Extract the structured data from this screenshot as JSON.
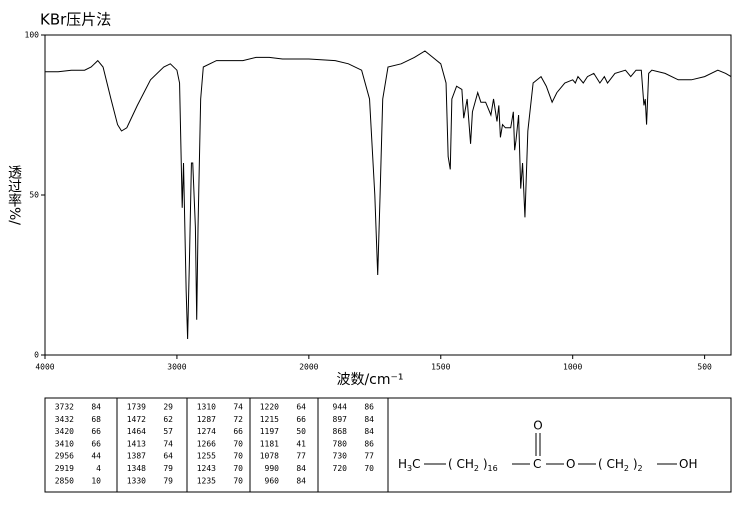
{
  "chart_data": {
    "type": "line",
    "title": "KBr压片法",
    "xlabel": "波数/cm⁻¹",
    "ylabel": "透过率%/",
    "color": "#000000",
    "xlim": [
      4000,
      400
    ],
    "x_scale_break": 2000,
    "x_scale_factor": 2,
    "xticks": [
      4000,
      3000,
      2000,
      1500,
      1000,
      500
    ],
    "ylim": [
      0,
      100
    ],
    "yticks": [
      0,
      50,
      100
    ],
    "x": [
      4000,
      3900,
      3800,
      3700,
      3650,
      3600,
      3560,
      3500,
      3450,
      3420,
      3380,
      3300,
      3200,
      3100,
      3050,
      3000,
      2980,
      2960,
      2950,
      2930,
      2919,
      2905,
      2890,
      2880,
      2860,
      2850,
      2840,
      2820,
      2800,
      2700,
      2600,
      2500,
      2400,
      2300,
      2200,
      2100,
      2000,
      1900,
      1850,
      1800,
      1770,
      1750,
      1739,
      1730,
      1720,
      1700,
      1650,
      1600,
      1560,
      1530,
      1500,
      1480,
      1472,
      1464,
      1458,
      1440,
      1420,
      1413,
      1400,
      1387,
      1380,
      1360,
      1348,
      1330,
      1310,
      1300,
      1287,
      1280,
      1274,
      1266,
      1255,
      1243,
      1235,
      1225,
      1220,
      1215,
      1205,
      1197,
      1190,
      1181,
      1170,
      1150,
      1120,
      1100,
      1078,
      1060,
      1030,
      1000,
      990,
      980,
      960,
      944,
      920,
      897,
      880,
      868,
      840,
      800,
      780,
      760,
      740,
      730,
      725,
      720,
      712,
      700,
      650,
      600,
      550,
      500,
      450,
      420,
      400
    ],
    "values": [
      88.5,
      88.5,
      89,
      89,
      90,
      92,
      90,
      80,
      72,
      70,
      71,
      78,
      86,
      90,
      91,
      89,
      85,
      46,
      60,
      20,
      5,
      30,
      60,
      60,
      40,
      11,
      40,
      80,
      90,
      92,
      92,
      92,
      93,
      93,
      92.5,
      92.5,
      92.5,
      92,
      91,
      89,
      80,
      50,
      25,
      50,
      80,
      90,
      91,
      93,
      95,
      93,
      91,
      85,
      62,
      58,
      80,
      84,
      83,
      74,
      80,
      66,
      76,
      82,
      79,
      79,
      75,
      80,
      73,
      78,
      68,
      72,
      71,
      71,
      71,
      76,
      64,
      67,
      75,
      52,
      60,
      43,
      70,
      85,
      87,
      84,
      79,
      82,
      85,
      86,
      85,
      87,
      85,
      87,
      88,
      85,
      87,
      85,
      88,
      89,
      87,
      89,
      89,
      78,
      80,
      72,
      88,
      89,
      88,
      86,
      86,
      87,
      89,
      88,
      87
    ]
  },
  "peak_table": [
    [
      [
        3732,
        84
      ],
      [
        3432,
        68
      ],
      [
        3420,
        66
      ],
      [
        3410,
        66
      ],
      [
        2956,
        44
      ],
      [
        2919,
        4
      ],
      [
        2850,
        10
      ]
    ],
    [
      [
        1739,
        29
      ],
      [
        1472,
        62
      ],
      [
        1464,
        57
      ],
      [
        1413,
        74
      ],
      [
        1387,
        64
      ],
      [
        1348,
        79
      ],
      [
        1330,
        79
      ]
    ],
    [
      [
        1310,
        74
      ],
      [
        1287,
        72
      ],
      [
        1274,
        66
      ],
      [
        1266,
        70
      ],
      [
        1255,
        70
      ],
      [
        1243,
        70
      ],
      [
        1235,
        70
      ]
    ],
    [
      [
        1220,
        64
      ],
      [
        1215,
        66
      ],
      [
        1197,
        50
      ],
      [
        1181,
        41
      ],
      [
        1078,
        77
      ],
      [
        990,
        84
      ],
      [
        960,
        84
      ]
    ],
    [
      [
        944,
        86
      ],
      [
        897,
        84
      ],
      [
        868,
        84
      ],
      [
        780,
        86
      ],
      [
        730,
        77
      ],
      [
        720,
        70
      ]
    ]
  ],
  "structure": {
    "carbonyl_oxygen": "O",
    "groups": [
      [
        {
          "t": "H"
        },
        {
          "s": "3"
        },
        {
          "t": "C"
        }
      ],
      [
        {
          "t": "( CH"
        },
        {
          "s": "2"
        },
        {
          "t": " )"
        },
        {
          "s": "16"
        }
      ],
      [
        {
          "t": "C"
        }
      ],
      [
        {
          "t": "O"
        }
      ],
      [
        {
          "t": "( CH"
        },
        {
          "s": "2"
        },
        {
          "t": " )"
        },
        {
          "s": "2"
        }
      ],
      [
        {
          "t": "OH"
        }
      ]
    ]
  }
}
